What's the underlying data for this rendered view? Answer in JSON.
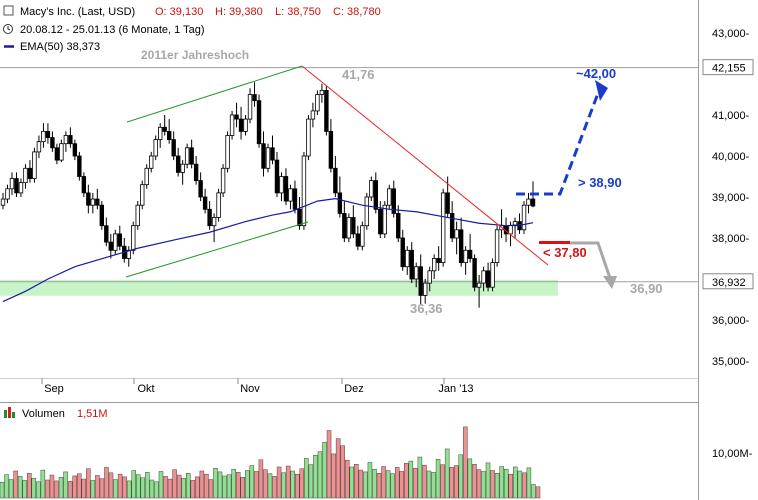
{
  "header": {
    "title_line": "Macy's Inc. (Last, USD)",
    "ohlc": [
      {
        "label": "O: 39,130"
      },
      {
        "label": "H: 39,380"
      },
      {
        "label": "L: 38,750"
      },
      {
        "label": "C: 38,780"
      }
    ],
    "range_line": "20.08.12 - 25.01.13 (6 Monate, 1 Tag)",
    "ema_line": "EMA(50)  38,373"
  },
  "colors": {
    "up": "#8fe08f",
    "down": "#f08f8f",
    "ema": "#1a1aa0",
    "trend_green": "#229922",
    "trend_red": "#ee2222",
    "support_band": "#c8f5c8",
    "blue_arrow": "#1a3ccc",
    "red_level": "#dd1111",
    "gray_arrow": "#a8a8a8"
  },
  "chart_data": {
    "type": "candlestick",
    "y_axis": {
      "range": [
        34500,
        43200
      ],
      "ticks": [
        "35,000-",
        "36,000-",
        "37,000-",
        "38,000-",
        "39,000-",
        "40,000-",
        "41,000-",
        "43,000-"
      ],
      "tick_values": [
        35000,
        36000,
        37000,
        38000,
        39000,
        40000,
        41000,
        43000
      ],
      "highlight_labels": [
        "42,155",
        "36,932"
      ],
      "highlight_values": [
        42155,
        36932
      ]
    },
    "x_axis": {
      "labels": [
        "Sep",
        "Okt",
        "Nov",
        "Dez",
        "Jan '13"
      ]
    },
    "series": [
      {
        "name": "EMA(50)",
        "value": "38,373"
      }
    ],
    "candles": [
      [
        38800,
        39100,
        38700,
        38950
      ],
      [
        38950,
        39300,
        38850,
        39200
      ],
      [
        39200,
        39600,
        39050,
        39450
      ],
      [
        39450,
        39600,
        39000,
        39100
      ],
      [
        39100,
        39450,
        39000,
        39350
      ],
      [
        39350,
        39800,
        39200,
        39700
      ],
      [
        39700,
        39900,
        39350,
        39450
      ],
      [
        39450,
        40200,
        39350,
        40100
      ],
      [
        40100,
        40500,
        39950,
        40350
      ],
      [
        40350,
        40800,
        40200,
        40600
      ],
      [
        40600,
        40800,
        40300,
        40450
      ],
      [
        40450,
        40600,
        40100,
        40200
      ],
      [
        40200,
        40300,
        39800,
        39900
      ],
      [
        39900,
        40400,
        39850,
        40300
      ],
      [
        40300,
        40600,
        40100,
        40500
      ],
      [
        40500,
        40700,
        40200,
        40300
      ],
      [
        40300,
        40400,
        39900,
        40000
      ],
      [
        40000,
        40100,
        39400,
        39500
      ],
      [
        39500,
        39600,
        39000,
        39100
      ],
      [
        39100,
        39300,
        38600,
        38800
      ],
      [
        38800,
        39100,
        38600,
        38950
      ],
      [
        38950,
        39200,
        38700,
        38800
      ],
      [
        38800,
        38900,
        38200,
        38300
      ],
      [
        38300,
        38500,
        37800,
        37900
      ],
      [
        37900,
        38100,
        37500,
        37700
      ],
      [
        37700,
        38200,
        37600,
        38100
      ],
      [
        38100,
        38300,
        37700,
        37800
      ],
      [
        37800,
        38000,
        37400,
        37500
      ],
      [
        37500,
        37800,
        37300,
        37700
      ],
      [
        37700,
        38400,
        37600,
        38300
      ],
      [
        38300,
        38900,
        38200,
        38800
      ],
      [
        38800,
        39400,
        38700,
        39300
      ],
      [
        39300,
        39800,
        39200,
        39700
      ],
      [
        39700,
        40100,
        39600,
        40000
      ],
      [
        40000,
        40500,
        39900,
        40400
      ],
      [
        40400,
        40800,
        40200,
        40700
      ],
      [
        40700,
        41000,
        40500,
        40600
      ],
      [
        40600,
        40900,
        40300,
        40400
      ],
      [
        40400,
        40600,
        39900,
        40000
      ],
      [
        40000,
        40200,
        39500,
        39600
      ],
      [
        39600,
        39900,
        39300,
        39800
      ],
      [
        39800,
        40300,
        39700,
        40200
      ],
      [
        40200,
        40400,
        39700,
        39800
      ],
      [
        39800,
        40000,
        39300,
        39400
      ],
      [
        39400,
        39600,
        38900,
        39000
      ],
      [
        39000,
        39200,
        38600,
        38700
      ],
      [
        38700,
        38900,
        38200,
        38300
      ],
      [
        38300,
        38600,
        37900,
        38500
      ],
      [
        38500,
        39200,
        38400,
        39100
      ],
      [
        39100,
        39800,
        39000,
        39700
      ],
      [
        39700,
        40600,
        39600,
        40500
      ],
      [
        40500,
        41100,
        40400,
        41000
      ],
      [
        41000,
        41300,
        40700,
        40900
      ],
      [
        40900,
        41200,
        40400,
        40600
      ],
      [
        40600,
        41000,
        40500,
        40900
      ],
      [
        40900,
        41650,
        40800,
        41500
      ],
      [
        41500,
        41800,
        41200,
        41350
      ],
      [
        41350,
        41500,
        40200,
        40300
      ],
      [
        40300,
        40600,
        39500,
        39700
      ],
      [
        39700,
        40300,
        39600,
        40200
      ],
      [
        40200,
        40500,
        39800,
        39900
      ],
      [
        39900,
        40100,
        39000,
        39100
      ],
      [
        39100,
        39600,
        38900,
        39500
      ],
      [
        39500,
        39700,
        38800,
        38900
      ],
      [
        38900,
        39300,
        38700,
        39200
      ],
      [
        39200,
        39400,
        38600,
        38700
      ],
      [
        38700,
        39000,
        38200,
        38300
      ],
      [
        38300,
        40100,
        38200,
        40000
      ],
      [
        40000,
        41000,
        39900,
        40900
      ],
      [
        40900,
        41300,
        40700,
        41100
      ],
      [
        41100,
        41600,
        41000,
        41500
      ],
      [
        41500,
        41760,
        41300,
        41600
      ],
      [
        41600,
        41700,
        40500,
        40600
      ],
      [
        40600,
        40900,
        39600,
        39700
      ],
      [
        39700,
        40000,
        39000,
        39100
      ],
      [
        39100,
        39500,
        38500,
        38600
      ],
      [
        38600,
        38900,
        37900,
        38000
      ],
      [
        38000,
        38600,
        37900,
        38500
      ],
      [
        38500,
        38800,
        38000,
        38100
      ],
      [
        38100,
        38300,
        37700,
        37800
      ],
      [
        37800,
        38400,
        37700,
        38300
      ],
      [
        38300,
        39100,
        38200,
        39000
      ],
      [
        39000,
        39500,
        38900,
        39400
      ],
      [
        39400,
        39600,
        38600,
        38700
      ],
      [
        38700,
        38900,
        38000,
        38100
      ],
      [
        38100,
        38900,
        38000,
        38800
      ],
      [
        38800,
        39300,
        38700,
        39200
      ],
      [
        39200,
        39400,
        38500,
        38600
      ],
      [
        38600,
        38800,
        37900,
        38000
      ],
      [
        38000,
        38200,
        37200,
        37300
      ],
      [
        37300,
        37800,
        37100,
        37700
      ],
      [
        37700,
        37900,
        36900,
        37000
      ],
      [
        37000,
        37400,
        36800,
        37300
      ],
      [
        37300,
        37600,
        36360,
        36600
      ],
      [
        36600,
        37000,
        36400,
        36900
      ],
      [
        36900,
        37300,
        36700,
        37200
      ],
      [
        37200,
        37600,
        37000,
        37500
      ],
      [
        37500,
        37800,
        37200,
        37400
      ],
      [
        37400,
        39200,
        37300,
        39100
      ],
      [
        39100,
        39500,
        38500,
        38600
      ],
      [
        38600,
        38900,
        37900,
        38000
      ],
      [
        38000,
        38400,
        37600,
        38200
      ],
      [
        38200,
        38500,
        37300,
        37400
      ],
      [
        37400,
        37800,
        37100,
        37700
      ],
      [
        37700,
        38100,
        37400,
        37500
      ],
      [
        37500,
        37600,
        36700,
        36800
      ],
      [
        36800,
        37100,
        36300,
        36900
      ],
      [
        36900,
        37300,
        36700,
        37200
      ],
      [
        37200,
        37400,
        36700,
        36800
      ],
      [
        36800,
        37500,
        36700,
        37400
      ],
      [
        37400,
        38300,
        37300,
        38200
      ],
      [
        38200,
        38700,
        38000,
        38300
      ],
      [
        38300,
        38500,
        37900,
        38100
      ],
      [
        38100,
        38400,
        37800,
        38300
      ],
      [
        38300,
        38500,
        38000,
        38400
      ],
      [
        38400,
        38600,
        38100,
        38200
      ],
      [
        38200,
        38900,
        38100,
        38800
      ],
      [
        38800,
        39100,
        38600,
        38950
      ],
      [
        38950,
        39380,
        38750,
        38780
      ]
    ],
    "ema": [
      [
        0,
        36450
      ],
      [
        5,
        36700
      ],
      [
        10,
        37000
      ],
      [
        16,
        37300
      ],
      [
        24,
        37560
      ],
      [
        30,
        37750
      ],
      [
        38,
        37950
      ],
      [
        46,
        38140
      ],
      [
        54,
        38400
      ],
      [
        60,
        38560
      ],
      [
        64,
        38640
      ],
      [
        70,
        38900
      ],
      [
        74,
        38960
      ],
      [
        80,
        38800
      ],
      [
        86,
        38700
      ],
      [
        92,
        38640
      ],
      [
        100,
        38480
      ],
      [
        106,
        38360
      ],
      [
        112,
        38300
      ],
      [
        116,
        38330
      ],
      [
        118,
        38373
      ]
    ],
    "annotations": {
      "year_high_label": "2011er Jahreshoch",
      "peak_label": "41,76",
      "trough_label": "36,36",
      "target_up": "~42,00",
      "breakout": "> 38,90",
      "breakdown": "< 37,80",
      "target_down": "36,90",
      "year_high_value": 42155,
      "support_value": 36932,
      "peak_value": 41760,
      "trough_value": 36360,
      "target_up_value": 42000,
      "breakout_value": 38900,
      "breakdown_value": 37800,
      "target_down_value": 36900
    }
  },
  "volume": {
    "label": "Volumen",
    "value": "1,51M",
    "axis_label": "10,00M-",
    "axis_value": 10000000,
    "max_value": 17000000,
    "bars": [
      3.5,
      5.2,
      4.1,
      6.0,
      4.8,
      3.9,
      5.5,
      4.4,
      3.6,
      6.2,
      4.0,
      5.1,
      3.8,
      4.6,
      5.8,
      3.7,
      4.9,
      5.4,
      4.2,
      6.5,
      3.9,
      5.0,
      4.3,
      6.8,
      5.6,
      4.1,
      5.3,
      4.7,
      3.8,
      6.1,
      5.2,
      4.5,
      5.7,
      4.0,
      3.6,
      5.9,
      4.8,
      4.2,
      6.3,
      5.1,
      4.4,
      5.5,
      3.9,
      4.7,
      6.0,
      5.3,
      4.1,
      6.6,
      5.8,
      4.9,
      5.2,
      6.4,
      5.7,
      4.6,
      6.1,
      7.2,
      5.9,
      8.5,
      6.3,
      5.4,
      4.8,
      6.9,
      5.6,
      7.1,
      6.0,
      5.3,
      6.5,
      8.8,
      7.4,
      9.5,
      10.3,
      12.4,
      15.0,
      9.8,
      13.2,
      11.6,
      8.4,
      6.9,
      7.5,
      6.2,
      5.8,
      7.9,
      6.4,
      5.5,
      7.0,
      6.1,
      5.4,
      6.8,
      5.9,
      7.7,
      8.2,
      6.6,
      9.1,
      7.3,
      6.0,
      5.7,
      8.6,
      7.4,
      10.9,
      6.8,
      7.2,
      9.6,
      15.8,
      8.7,
      7.5,
      6.3,
      5.9,
      7.8,
      6.1,
      5.5,
      7.0,
      6.4,
      5.3,
      6.9,
      6.0,
      5.6,
      6.7,
      3.0,
      2.5
    ]
  }
}
